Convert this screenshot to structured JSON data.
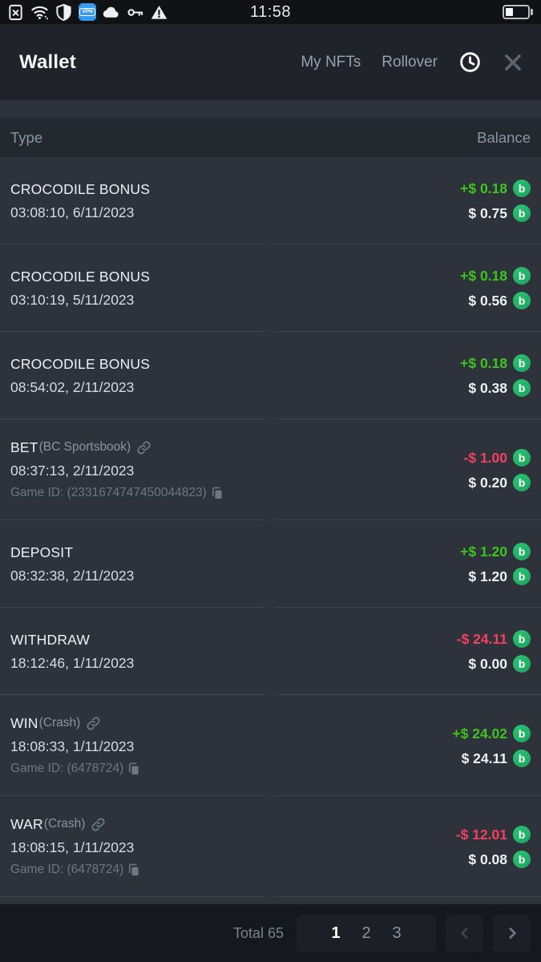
{
  "status_bar": {
    "time": "11:58",
    "vpn_badge": "VPN",
    "battery_percent": 35,
    "icon_names": [
      "sim-error-icon",
      "wifi-icon",
      "shield-icon",
      "vpn-badge",
      "cloud-icon",
      "key-icon",
      "warning-icon",
      "battery-icon"
    ]
  },
  "header": {
    "title": "Wallet",
    "nav": [
      {
        "label": "My NFTs"
      },
      {
        "label": "Rollover"
      }
    ],
    "icon_names": [
      "history-clock-icon",
      "close-icon"
    ]
  },
  "table_header": {
    "type": "Type",
    "balance": "Balance"
  },
  "transactions": [
    {
      "type": "CROCODILE BONUS",
      "subtype": "",
      "has_link": false,
      "datetime": "03:08:10, 6/11/2023",
      "game_id": "",
      "change": "+$ 0.18",
      "direction": "positive",
      "balance": "$ 0.75"
    },
    {
      "type": "CROCODILE BONUS",
      "subtype": "",
      "has_link": false,
      "datetime": "03:10:19, 5/11/2023",
      "game_id": "",
      "change": "+$ 0.18",
      "direction": "positive",
      "balance": "$ 0.56"
    },
    {
      "type": "CROCODILE BONUS",
      "subtype": "",
      "has_link": false,
      "datetime": "08:54:02, 2/11/2023",
      "game_id": "",
      "change": "+$ 0.18",
      "direction": "positive",
      "balance": "$ 0.38"
    },
    {
      "type": "BET",
      "subtype": "(BC Sportsbook)",
      "has_link": true,
      "datetime": "08:37:13, 2/11/2023",
      "game_id": "Game ID: (2331674747450044823)",
      "change": "-$ 1.00",
      "direction": "negative",
      "balance": "$ 0.20"
    },
    {
      "type": "DEPOSIT",
      "subtype": "",
      "has_link": false,
      "datetime": "08:32:38, 2/11/2023",
      "game_id": "",
      "change": "+$ 1.20",
      "direction": "positive",
      "balance": "$ 1.20"
    },
    {
      "type": "WITHDRAW",
      "subtype": "",
      "has_link": false,
      "datetime": "18:12:46, 1/11/2023",
      "game_id": "",
      "change": "-$ 24.11",
      "direction": "negative",
      "balance": "$ 0.00"
    },
    {
      "type": "WIN",
      "subtype": "(Crash)",
      "has_link": true,
      "datetime": "18:08:33, 1/11/2023",
      "game_id": "Game ID: (6478724)",
      "change": "+$ 24.02",
      "direction": "positive",
      "balance": "$ 24.11"
    },
    {
      "type": "WAR",
      "subtype": "(Crash)",
      "has_link": true,
      "datetime": "18:08:15, 1/11/2023",
      "game_id": "Game ID: (6478724)",
      "change": "-$ 12.01",
      "direction": "negative",
      "balance": "$ 0.08"
    }
  ],
  "icons": {
    "coin_symbol": "b",
    "row_icon_names": [
      "link-icon",
      "copy-icon",
      "coin-icon"
    ],
    "footer_icon_names": [
      "chevron-left-icon",
      "chevron-right-icon"
    ]
  },
  "pagination": {
    "total_label": "Total 65",
    "pages": [
      "1",
      "2",
      "3"
    ],
    "active_page": "1"
  },
  "colors": {
    "positive": "#3dc51e",
    "negative": "#f4405f",
    "coin_green": "#26ba68",
    "vpn_blue": "#379ced",
    "body_bg": "#2e333b",
    "header_bg": "#20242a",
    "footer_bg": "#15181c"
  }
}
